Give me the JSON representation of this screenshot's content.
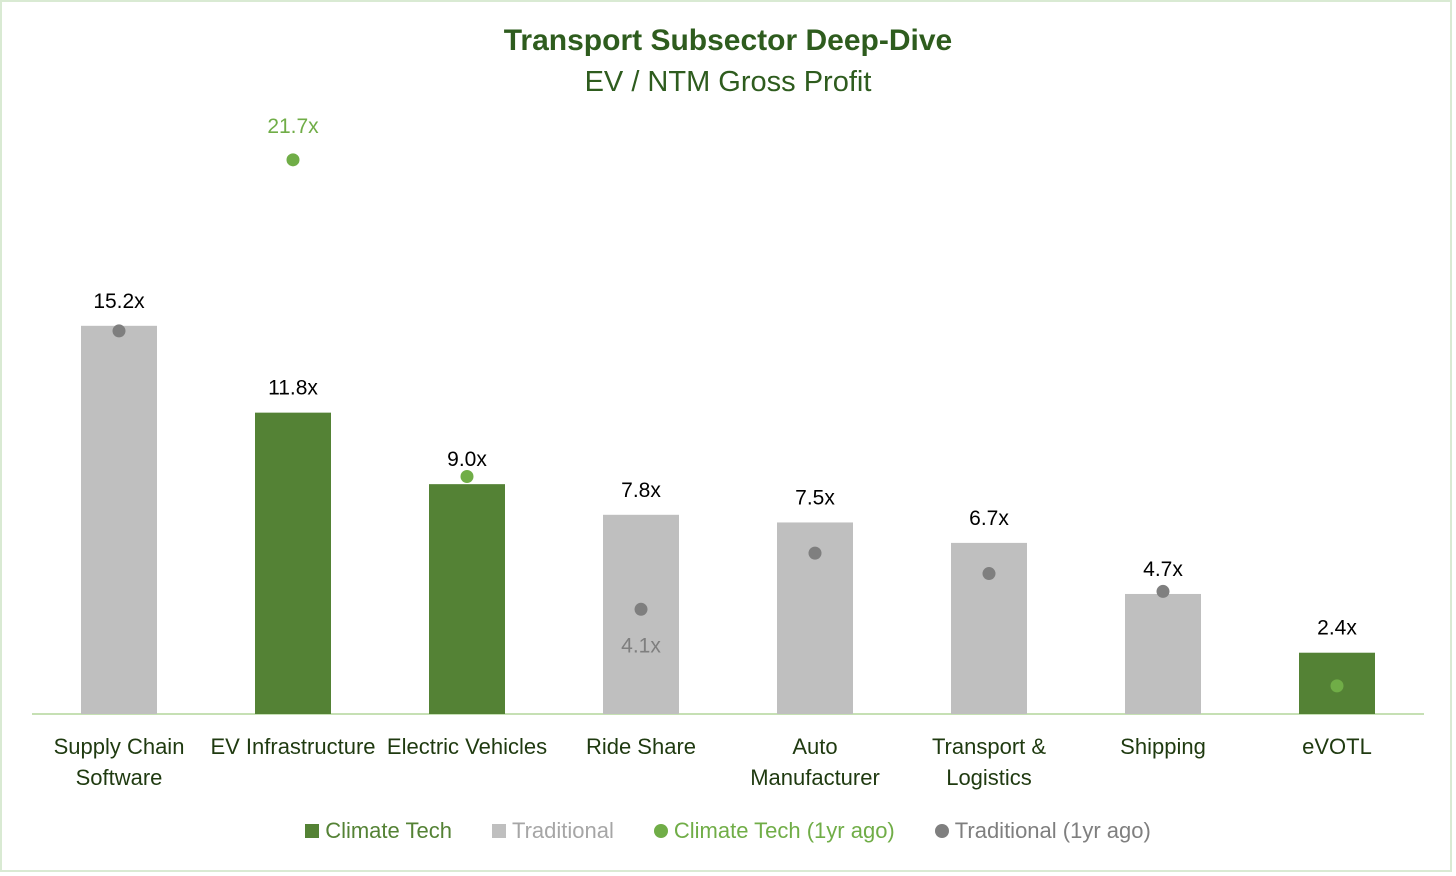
{
  "chart_data": {
    "type": "bar",
    "title": "Transport Subsector Deep-Dive",
    "subtitle": "EV / NTM Gross Profit",
    "categories": [
      "Supply Chain\nSoftware",
      "EV Infrastructure",
      "Electric Vehicles",
      "Ride Share",
      "Auto\nManufacturer",
      "Transport &\nLogistics",
      "Shipping",
      "eVOTL"
    ],
    "values": [
      15.2,
      11.8,
      9.0,
      7.8,
      7.5,
      6.7,
      4.7,
      2.4
    ],
    "value_labels": [
      "15.2x",
      "11.8x",
      "9.0x",
      "7.8x",
      "7.5x",
      "6.7x",
      "4.7x",
      "2.4x"
    ],
    "bar_group": [
      "Traditional",
      "Climate Tech",
      "Climate Tech",
      "Traditional",
      "Traditional",
      "Traditional",
      "Traditional",
      "Climate Tech"
    ],
    "one_year_ago": [
      15.0,
      21.7,
      9.3,
      4.1,
      6.3,
      5.5,
      4.8,
      1.1
    ],
    "one_year_ago_labels": {
      "1": "21.7x",
      "3": "4.1x"
    },
    "ylim": [
      0,
      26
    ],
    "legend": {
      "position": "bottom",
      "items": [
        {
          "label": "Climate Tech",
          "marker": "square",
          "color": "#548235"
        },
        {
          "label": "Traditional",
          "marker": "square",
          "color": "#bfbfbf"
        },
        {
          "label": "Climate Tech (1yr ago)",
          "marker": "dot",
          "color": "#70ad47"
        },
        {
          "label": "Traditional (1yr ago)",
          "marker": "dot",
          "color": "#7f7f7f"
        }
      ]
    },
    "colors": {
      "Climate Tech": "#548235",
      "Traditional": "#bfbfbf",
      "Climate Tech (1yr ago)": "#70ad47",
      "Traditional (1yr ago)": "#7f7f7f",
      "title": "#2e5c1e",
      "axis": "#c6e0b4"
    },
    "grid": false
  }
}
